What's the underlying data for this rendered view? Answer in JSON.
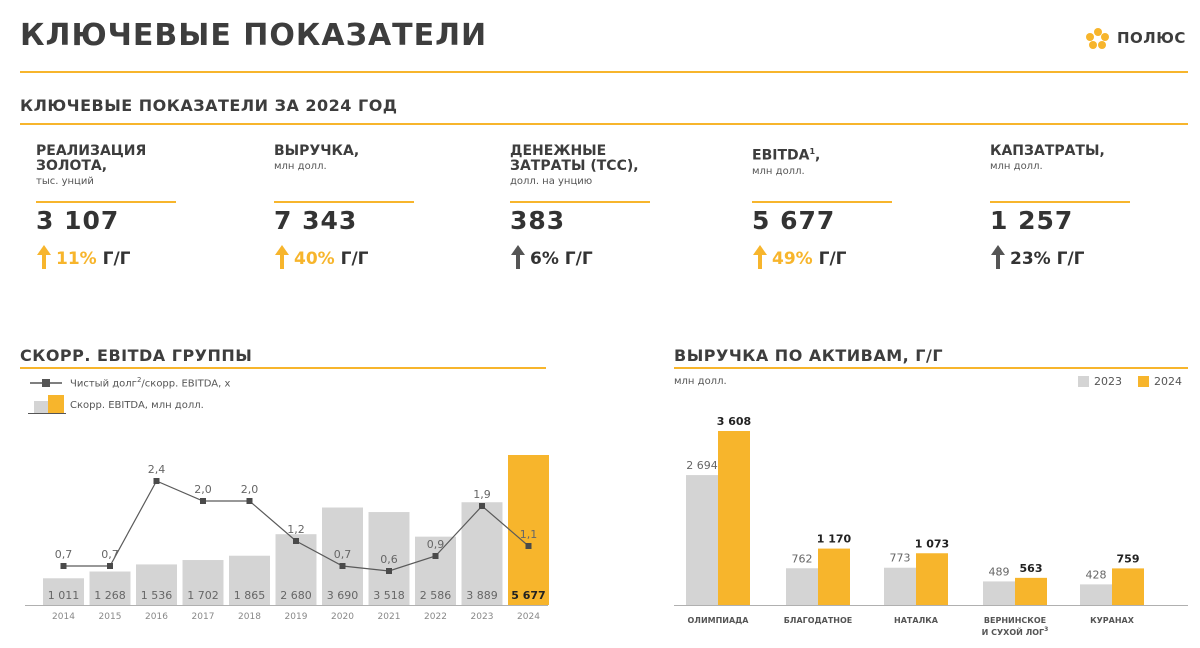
{
  "header": {
    "title": "КЛЮЧЕВЫЕ ПОКАЗАТЕЛИ",
    "brand": "ПОЛЮС"
  },
  "colors": {
    "accent": "#f7b52c",
    "grey_bar": "#d4d4d4",
    "dark": "#3d3d3d"
  },
  "subtitle": "КЛЮЧЕВЫЕ ПОКАЗАТЕЛИ ЗА 2024 ГОД",
  "kpis": [
    {
      "title": "РЕАЛИЗАЦИЯ ЗОЛОТА,",
      "sup": "",
      "unit": "тыс. унций",
      "value": "3 107",
      "change": "11%",
      "yy": "Г/Г",
      "highlight": true
    },
    {
      "title": "ВЫРУЧКА,",
      "sup": "",
      "unit": "млн долл.",
      "value": "7 343",
      "change": "40%",
      "yy": "Г/Г",
      "highlight": true
    },
    {
      "title": "ДЕНЕЖНЫЕ ЗАТРАТЫ (TCC),",
      "sup": "",
      "unit": "долл. на унцию",
      "value": "383",
      "change": "6%",
      "yy": "Г/Г",
      "highlight": false
    },
    {
      "title": "EBITDA",
      "sup": "1",
      "title_suffix": ",",
      "unit": "млн долл.",
      "value": "5 677",
      "change": "49%",
      "yy": "Г/Г",
      "highlight": true
    },
    {
      "title": "КАПЗАТРАТЫ,",
      "sup": "",
      "unit": "млн долл.",
      "value": "1 257",
      "change": "23%",
      "yy": "Г/Г",
      "highlight": false
    }
  ],
  "left_chart": {
    "title": "СКОРР. EBITDA ГРУППЫ",
    "legend_line": "Чистый долг",
    "legend_line_sup": "2",
    "legend_line_suffix": "/скорр. EBITDA, x",
    "legend_bar": "Скорр. EBITDA, млн долл."
  },
  "right_chart": {
    "title": "ВЫРУЧКА ПО АКТИВАМ, Г/Г",
    "unit": "млн долл.",
    "legend": [
      "2023",
      "2024"
    ]
  },
  "chart_data": [
    {
      "type": "bar",
      "title": "СКОРР. EBITDA ГРУППЫ",
      "categories": [
        "2014",
        "2015",
        "2016",
        "2017",
        "2018",
        "2019",
        "2020",
        "2021",
        "2022",
        "2023",
        "2024"
      ],
      "series": [
        {
          "name": "Скорр. EBITDA, млн долл.",
          "values": [
            1011,
            1268,
            1536,
            1702,
            1865,
            2680,
            3690,
            3518,
            2586,
            3889,
            5677
          ],
          "labels": [
            "1 011",
            "1 268",
            "1 536",
            "1 702",
            "1 865",
            "2 680",
            "3 690",
            "3 518",
            "2 586",
            "3 889",
            "5 677"
          ]
        },
        {
          "name": "Чистый долг/скорр. EBITDA, x",
          "type": "line",
          "values": [
            0.7,
            0.7,
            2.4,
            2.0,
            2.0,
            1.2,
            0.7,
            0.6,
            0.9,
            1.9,
            1.1
          ],
          "labels": [
            "0,7",
            "0,7",
            "2,4",
            "2,0",
            "2,0",
            "1,2",
            "0,7",
            "0,6",
            "0,9",
            "1,9",
            "1,1"
          ]
        }
      ],
      "ylim": [
        0,
        6000
      ],
      "y2lim": [
        0,
        3.0
      ],
      "grid": false
    },
    {
      "type": "bar",
      "title": "ВЫРУЧКА ПО АКТИВАМ, Г/Г",
      "ylabel": "млн долл.",
      "categories": [
        "ОЛИМПИАДА",
        "БЛАГОДАТНОЕ",
        "НАТАЛКА",
        "ВЕРНИНСКОЕ И СУХОЙ ЛОГ",
        "КУРАНАХ"
      ],
      "category_sup": [
        "",
        "",
        "",
        "3",
        ""
      ],
      "series": [
        {
          "name": "2023",
          "values": [
            2694,
            762,
            773,
            489,
            428
          ],
          "labels": [
            "2 694",
            "762",
            "773",
            "489",
            "428"
          ]
        },
        {
          "name": "2024",
          "values": [
            3608,
            1170,
            1073,
            563,
            759
          ],
          "labels": [
            "3 608",
            "1 170",
            "1 073",
            "563",
            "759"
          ]
        }
      ],
      "ylim": [
        0,
        3700
      ],
      "legend": "top-right",
      "grid": false
    }
  ]
}
